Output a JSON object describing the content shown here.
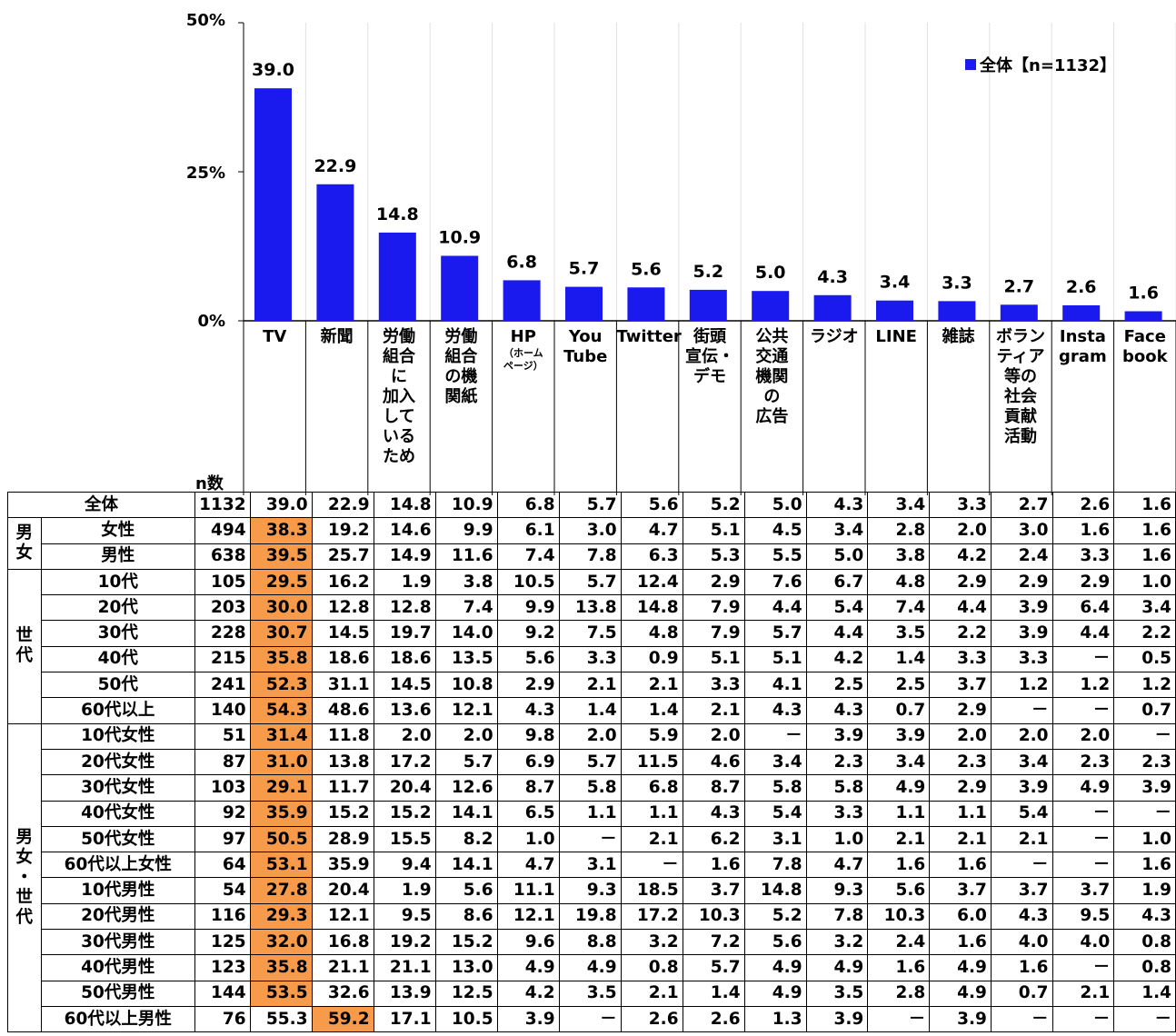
{
  "legend": "全体【n=1132】",
  "colors": {
    "bar": "#1a1aef",
    "highlight": "#f79a4a"
  },
  "n_label": "n数",
  "chart_data": {
    "type": "bar",
    "ylim": [
      0,
      50
    ],
    "yticks": [
      "50%",
      "25%",
      "0%"
    ],
    "categories": [
      "TV",
      "新聞",
      "労働組合に加入しているため",
      "労働組合の機関紙",
      "HP(ホームページ)",
      "YouTube",
      "Twitter",
      "街頭宣伝・デモ",
      "公共交通機関の広告",
      "ラジオ",
      "LINE",
      "雑誌",
      "ボランティア等の社会貢献活動",
      "Instagram",
      "Facebook"
    ],
    "headers": [
      [
        "TV"
      ],
      [
        "新聞"
      ],
      [
        "労働",
        "組合",
        "に",
        "加入",
        "して",
        "いる",
        "ため"
      ],
      [
        "労働",
        "組合",
        "の機",
        "関紙"
      ],
      [
        "HP"
      ],
      [
        "You",
        "Tube"
      ],
      [
        "Twitter"
      ],
      [
        "街頭",
        "宣伝・",
        "デモ"
      ],
      [
        "公共",
        "交通",
        "機関",
        "の",
        "広告"
      ],
      [
        "ラジオ"
      ],
      [
        "LINE"
      ],
      [
        "雑誌"
      ],
      [
        "ボラン",
        "ティア",
        "等の",
        "社会",
        "貢献",
        "活動"
      ],
      [
        "Insta",
        "gram"
      ],
      [
        "Face",
        "book"
      ]
    ],
    "hp_sub": [
      "（ホーム",
      "ページ）"
    ],
    "series": [
      {
        "name": "全体【n=1132】",
        "values": [
          39.0,
          22.9,
          14.8,
          10.9,
          6.8,
          5.7,
          5.6,
          5.2,
          5.0,
          4.3,
          3.4,
          3.3,
          2.7,
          2.6,
          1.6
        ]
      }
    ]
  },
  "table": {
    "groups": [
      {
        "label": [
          "男",
          "女"
        ],
        "rows": [
          1,
          2
        ]
      },
      {
        "label": [
          "世",
          "代"
        ],
        "rows": [
          3,
          8
        ]
      },
      {
        "label": [
          "男",
          "女",
          "・",
          "世",
          "代"
        ],
        "rows": [
          9,
          20
        ]
      }
    ],
    "rows": [
      {
        "label": "全体",
        "n": "1132",
        "v": [
          "39.0",
          "22.9",
          "14.8",
          "10.9",
          "6.8",
          "5.7",
          "5.6",
          "5.2",
          "5.0",
          "4.3",
          "3.4",
          "3.3",
          "2.7",
          "2.6",
          "1.6"
        ],
        "hl": -1
      },
      {
        "label": "女性",
        "n": "494",
        "v": [
          "38.3",
          "19.2",
          "14.6",
          "9.9",
          "6.1",
          "3.0",
          "4.7",
          "5.1",
          "4.5",
          "3.4",
          "2.8",
          "2.0",
          "3.0",
          "1.6",
          "1.6"
        ],
        "hl": 0
      },
      {
        "label": "男性",
        "n": "638",
        "v": [
          "39.5",
          "25.7",
          "14.9",
          "11.6",
          "7.4",
          "7.8",
          "6.3",
          "5.3",
          "5.5",
          "5.0",
          "3.8",
          "4.2",
          "2.4",
          "3.3",
          "1.6"
        ],
        "hl": 0
      },
      {
        "label": "10代",
        "n": "105",
        "v": [
          "29.5",
          "16.2",
          "1.9",
          "3.8",
          "10.5",
          "5.7",
          "12.4",
          "2.9",
          "7.6",
          "6.7",
          "4.8",
          "2.9",
          "2.9",
          "2.9",
          "1.0"
        ],
        "hl": 0
      },
      {
        "label": "20代",
        "n": "203",
        "v": [
          "30.0",
          "12.8",
          "12.8",
          "7.4",
          "9.9",
          "13.8",
          "14.8",
          "7.9",
          "4.4",
          "5.4",
          "7.4",
          "4.4",
          "3.9",
          "6.4",
          "3.4"
        ],
        "hl": 0
      },
      {
        "label": "30代",
        "n": "228",
        "v": [
          "30.7",
          "14.5",
          "19.7",
          "14.0",
          "9.2",
          "7.5",
          "4.8",
          "7.9",
          "5.7",
          "4.4",
          "3.5",
          "2.2",
          "3.9",
          "4.4",
          "2.2"
        ],
        "hl": 0
      },
      {
        "label": "40代",
        "n": "215",
        "v": [
          "35.8",
          "18.6",
          "18.6",
          "13.5",
          "5.6",
          "3.3",
          "0.9",
          "5.1",
          "5.1",
          "4.2",
          "1.4",
          "3.3",
          "3.3",
          "－",
          "0.5"
        ],
        "hl": 0
      },
      {
        "label": "50代",
        "n": "241",
        "v": [
          "52.3",
          "31.1",
          "14.5",
          "10.8",
          "2.9",
          "2.1",
          "2.1",
          "3.3",
          "4.1",
          "2.5",
          "2.5",
          "3.7",
          "1.2",
          "1.2",
          "1.2"
        ],
        "hl": 0
      },
      {
        "label": "60代以上",
        "n": "140",
        "v": [
          "54.3",
          "48.6",
          "13.6",
          "12.1",
          "4.3",
          "1.4",
          "1.4",
          "2.1",
          "4.3",
          "4.3",
          "0.7",
          "2.9",
          "－",
          "－",
          "0.7"
        ],
        "hl": 0
      },
      {
        "label": "10代女性",
        "n": "51",
        "v": [
          "31.4",
          "11.8",
          "2.0",
          "2.0",
          "9.8",
          "2.0",
          "5.9",
          "2.0",
          "－",
          "3.9",
          "3.9",
          "2.0",
          "2.0",
          "2.0",
          "－"
        ],
        "hl": 0
      },
      {
        "label": "20代女性",
        "n": "87",
        "v": [
          "31.0",
          "13.8",
          "17.2",
          "5.7",
          "6.9",
          "5.7",
          "11.5",
          "4.6",
          "3.4",
          "2.3",
          "3.4",
          "2.3",
          "3.4",
          "2.3",
          "2.3"
        ],
        "hl": 0
      },
      {
        "label": "30代女性",
        "n": "103",
        "v": [
          "29.1",
          "11.7",
          "20.4",
          "12.6",
          "8.7",
          "5.8",
          "6.8",
          "8.7",
          "5.8",
          "5.8",
          "4.9",
          "2.9",
          "3.9",
          "4.9",
          "3.9"
        ],
        "hl": 0
      },
      {
        "label": "40代女性",
        "n": "92",
        "v": [
          "35.9",
          "15.2",
          "15.2",
          "14.1",
          "6.5",
          "1.1",
          "1.1",
          "4.3",
          "5.4",
          "3.3",
          "1.1",
          "1.1",
          "5.4",
          "－",
          "－"
        ],
        "hl": 0
      },
      {
        "label": "50代女性",
        "n": "97",
        "v": [
          "50.5",
          "28.9",
          "15.5",
          "8.2",
          "1.0",
          "－",
          "2.1",
          "6.2",
          "3.1",
          "1.0",
          "2.1",
          "2.1",
          "2.1",
          "－",
          "1.0"
        ],
        "hl": 0
      },
      {
        "label": "60代以上女性",
        "n": "64",
        "v": [
          "53.1",
          "35.9",
          "9.4",
          "14.1",
          "4.7",
          "3.1",
          "－",
          "1.6",
          "7.8",
          "4.7",
          "1.6",
          "1.6",
          "－",
          "－",
          "1.6"
        ],
        "hl": 0
      },
      {
        "label": "10代男性",
        "n": "54",
        "v": [
          "27.8",
          "20.4",
          "1.9",
          "5.6",
          "11.1",
          "9.3",
          "18.5",
          "3.7",
          "14.8",
          "9.3",
          "5.6",
          "3.7",
          "3.7",
          "3.7",
          "1.9"
        ],
        "hl": 0
      },
      {
        "label": "20代男性",
        "n": "116",
        "v": [
          "29.3",
          "12.1",
          "9.5",
          "8.6",
          "12.1",
          "19.8",
          "17.2",
          "10.3",
          "5.2",
          "7.8",
          "10.3",
          "6.0",
          "4.3",
          "9.5",
          "4.3"
        ],
        "hl": 0
      },
      {
        "label": "30代男性",
        "n": "125",
        "v": [
          "32.0",
          "16.8",
          "19.2",
          "15.2",
          "9.6",
          "8.8",
          "3.2",
          "7.2",
          "5.6",
          "3.2",
          "2.4",
          "1.6",
          "4.0",
          "4.0",
          "0.8"
        ],
        "hl": 0
      },
      {
        "label": "40代男性",
        "n": "123",
        "v": [
          "35.8",
          "21.1",
          "21.1",
          "13.0",
          "4.9",
          "4.9",
          "0.8",
          "5.7",
          "4.9",
          "4.9",
          "1.6",
          "4.9",
          "1.6",
          "－",
          "0.8"
        ],
        "hl": 0
      },
      {
        "label": "50代男性",
        "n": "144",
        "v": [
          "53.5",
          "32.6",
          "13.9",
          "12.5",
          "4.2",
          "3.5",
          "2.1",
          "1.4",
          "4.9",
          "3.5",
          "2.8",
          "4.9",
          "0.7",
          "2.1",
          "1.4"
        ],
        "hl": 0
      },
      {
        "label": "60代以上男性",
        "n": "76",
        "v": [
          "55.3",
          "59.2",
          "17.1",
          "10.5",
          "3.9",
          "－",
          "2.6",
          "2.6",
          "1.3",
          "3.9",
          "－",
          "3.9",
          "－",
          "－",
          "－"
        ],
        "hl": 1
      }
    ]
  }
}
